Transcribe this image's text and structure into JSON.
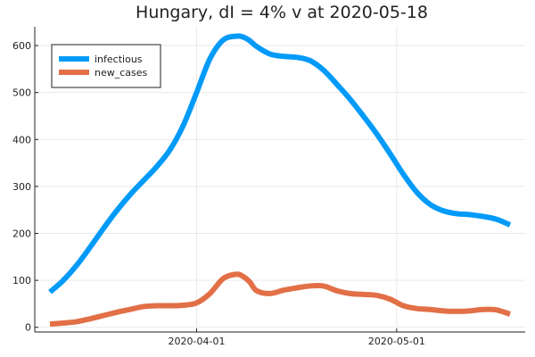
{
  "chart_data": {
    "type": "line",
    "title": "Hungary,  dI = 4% v at 2020-05-18",
    "xlabel": "",
    "ylabel": "",
    "x_range": [
      "2020-03-10",
      "2020-05-18"
    ],
    "ylim": [
      -10,
      640
    ],
    "y_ticks": [
      0,
      100,
      200,
      300,
      400,
      500,
      600
    ],
    "x_ticks": [
      {
        "date": "2020-04-01",
        "label": "2020-04-01"
      },
      {
        "date": "2020-05-01",
        "label": "2020-05-01"
      }
    ],
    "grid": true,
    "legend_position": "top-left",
    "x": [
      "2020-03-10",
      "2020-03-12",
      "2020-03-14",
      "2020-03-16",
      "2020-03-18",
      "2020-03-20",
      "2020-03-22",
      "2020-03-24",
      "2020-03-26",
      "2020-03-28",
      "2020-03-30",
      "2020-04-01",
      "2020-04-03",
      "2020-04-05",
      "2020-04-07",
      "2020-04-08",
      "2020-04-09",
      "2020-04-10",
      "2020-04-12",
      "2020-04-14",
      "2020-04-16",
      "2020-04-18",
      "2020-04-20",
      "2020-04-22",
      "2020-04-24",
      "2020-04-26",
      "2020-04-28",
      "2020-04-30",
      "2020-05-02",
      "2020-05-04",
      "2020-05-06",
      "2020-05-08",
      "2020-05-10",
      "2020-05-12",
      "2020-05-14",
      "2020-05-16",
      "2020-05-18"
    ],
    "series": [
      {
        "name": "infectious",
        "color": "#009af9",
        "values": [
          75,
          100,
          132,
          170,
          210,
          248,
          282,
          312,
          342,
          378,
          430,
          500,
          572,
          612,
          620,
          618,
          610,
          598,
          582,
          577,
          575,
          568,
          548,
          518,
          486,
          450,
          412,
          370,
          326,
          288,
          262,
          248,
          242,
          240,
          236,
          230,
          218
        ]
      },
      {
        "name": "new_cases",
        "color": "#e26f46",
        "values": [
          7,
          9,
          12,
          18,
          25,
          32,
          38,
          44,
          46,
          46,
          47,
          52,
          72,
          104,
          113,
          108,
          96,
          78,
          72,
          79,
          84,
          88,
          88,
          78,
          72,
          70,
          68,
          60,
          46,
          40,
          38,
          35,
          34,
          35,
          38,
          37,
          28
        ]
      }
    ]
  }
}
